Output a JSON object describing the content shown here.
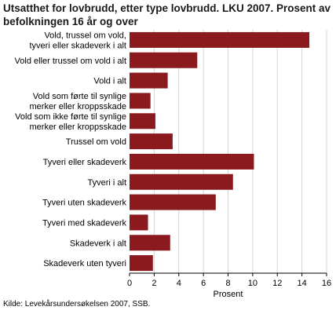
{
  "header": {
    "title": "Utsatthet for lovbrudd, etter type lovbrudd. LKU 2007. Prosent av befolkningen 16 år og over"
  },
  "footer": {
    "source": "Kilde: Levekårsundersøkelsen 2007, SSB."
  },
  "colors": {
    "bar": "#8b1a1f",
    "plot_background": "#ffffff",
    "grid": "#d4d4d4"
  },
  "chart_data": {
    "type": "bar",
    "orientation": "horizontal",
    "categories": [
      [
        "Vold, trussel om vold,",
        "tyveri eller skadeverk i alt"
      ],
      [
        "Vold eller trussel om vold i alt"
      ],
      [
        "Vold  i alt"
      ],
      [
        "Vold som førte til synlige",
        "merker eller kroppsskade"
      ],
      [
        "Vold som ikke førte til synlige",
        "merker eller kroppsskade"
      ],
      [
        "Trussel om vold"
      ],
      [
        "Tyveri eller skadeverk"
      ],
      [
        "Tyveri  i alt"
      ],
      [
        "Tyveri uten skadeverk"
      ],
      [
        "Tyveri med skadeverk"
      ],
      [
        "Skadeverk  i alt"
      ],
      [
        "Skadeverk uten tyveri"
      ]
    ],
    "values": [
      14.6,
      5.5,
      3.1,
      1.7,
      2.1,
      3.5,
      10.1,
      8.4,
      7.0,
      1.5,
      3.3,
      1.9
    ],
    "xlabel": "Prosent",
    "ylabel": "",
    "xlim": [
      0,
      16
    ],
    "xticks": [
      0,
      2,
      4,
      6,
      8,
      10,
      12,
      14,
      16
    ],
    "grid": true,
    "legend": "none"
  }
}
